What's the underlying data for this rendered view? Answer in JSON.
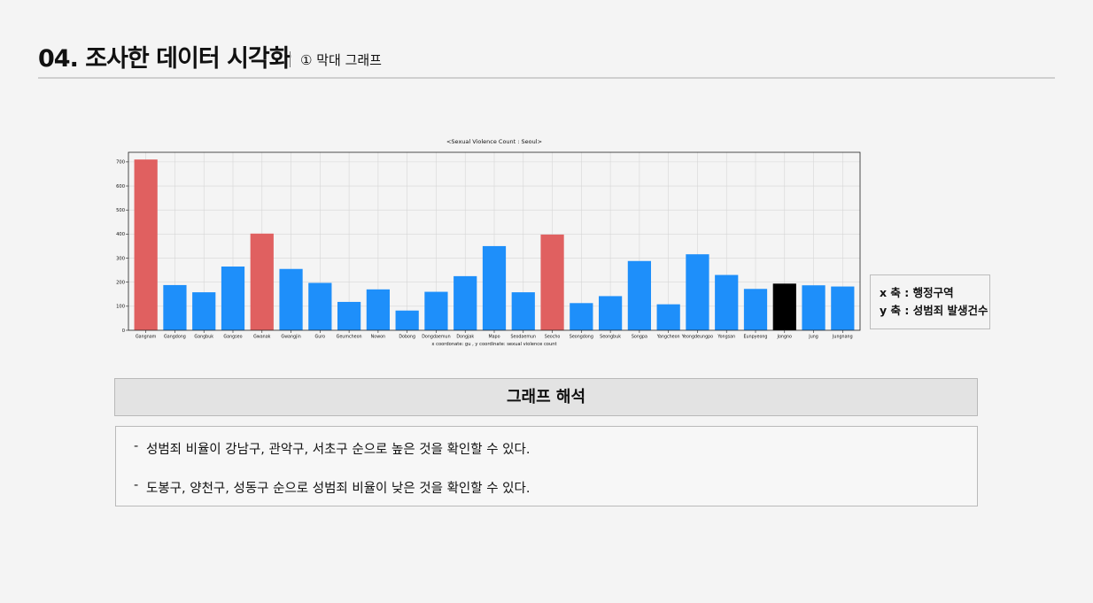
{
  "header": {
    "title": "04. 조사한 데이터 시각화",
    "subtitle": "① 막대 그래프"
  },
  "chart_data": {
    "type": "bar",
    "title": "<Sexual Violence Count : Seoul>",
    "xlabel": "x coordonate: gu , y coordinate: sexual violence count",
    "ylabel": "",
    "ylim": [
      0,
      740
    ],
    "yticks": [
      0,
      100,
      200,
      300,
      400,
      500,
      600,
      700
    ],
    "grid": true,
    "categories": [
      "Gangnam",
      "Gangdong",
      "Gangbuk",
      "Gangseo",
      "Gwanak",
      "Gwangjin",
      "Guro",
      "Geumcheon",
      "Nowon",
      "Dobong",
      "Dongdaemun",
      "Dongjak",
      "Mapo",
      "Seodaemun",
      "Seocho",
      "Seongdong",
      "Seongbuk",
      "Songpa",
      "Yangcheon",
      "Yeongdeungpo",
      "Yongsan",
      "Eunpyeong",
      "Jongno",
      "Jung",
      "Jungnang"
    ],
    "values": [
      710,
      188,
      158,
      265,
      402,
      255,
      197,
      118,
      170,
      82,
      160,
      225,
      350,
      158,
      398,
      113,
      142,
      288,
      108,
      316,
      230,
      172,
      194,
      187,
      182
    ],
    "colors": [
      "#e06060",
      "#1e8ffa",
      "#1e8ffa",
      "#1e8ffa",
      "#e06060",
      "#1e8ffa",
      "#1e8ffa",
      "#1e8ffa",
      "#1e8ffa",
      "#1e8ffa",
      "#1e8ffa",
      "#1e8ffa",
      "#1e8ffa",
      "#1e8ffa",
      "#e06060",
      "#1e8ffa",
      "#1e8ffa",
      "#1e8ffa",
      "#1e8ffa",
      "#1e8ffa",
      "#1e8ffa",
      "#1e8ffa",
      "#000000",
      "#1e8ffa",
      "#1e8ffa"
    ]
  },
  "axis_legend": {
    "x_line": "x 축 : 행정구역",
    "y_line": "y 축 : 성범죄 발생건수"
  },
  "interpretation": {
    "heading": "그래프 해석",
    "items": [
      "성범죄 비율이 강남구, 관악구, 서초구 순으로 높은 것을 확인할 수 있다.",
      "도봉구, 양천구, 성동구 순으로 성범죄 비율이 낮은 것을 확인할 수 있다."
    ]
  }
}
